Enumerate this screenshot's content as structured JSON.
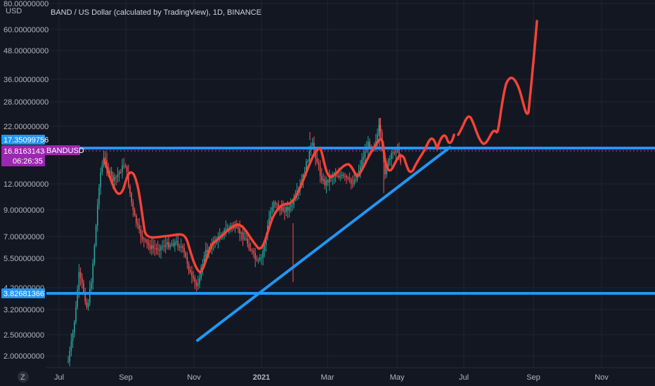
{
  "header": {
    "title": "BAND / US Dollar (calculated by TradingView), 1D, BINANCE",
    "currency": "USD"
  },
  "price_axis": {
    "ticks": [
      "80.00000000",
      "60.00000000",
      "48.00000000",
      "36.00000000",
      "28.00000000",
      "22.00000000",
      "12.00000000",
      "9.00000000",
      "7.00000000",
      "5.50000000",
      "4.20000000",
      "3.20000000",
      "2.50000000",
      "2.00000000"
    ]
  },
  "time_axis": {
    "ticks": [
      "Jul",
      "Sep",
      "Nov",
      "2021",
      "Mar",
      "May",
      "Jul",
      "Sep",
      "Nov"
    ]
  },
  "labels": {
    "upper_level": "17.35099756",
    "current_price": "16.81631434",
    "symbol": "BANDUSD",
    "countdown": "06:26:35",
    "lower_level": "3.82681366"
  },
  "corner": {
    "zoom_icon_text": "Z"
  },
  "colors": {
    "background": "#131722",
    "grid": "#1f2433",
    "up_candle": "#26a69a",
    "down_candle": "#ef5350",
    "level_line": "#2196f3",
    "price_line": "#9c27b0",
    "drawing": "#f44336"
  }
}
